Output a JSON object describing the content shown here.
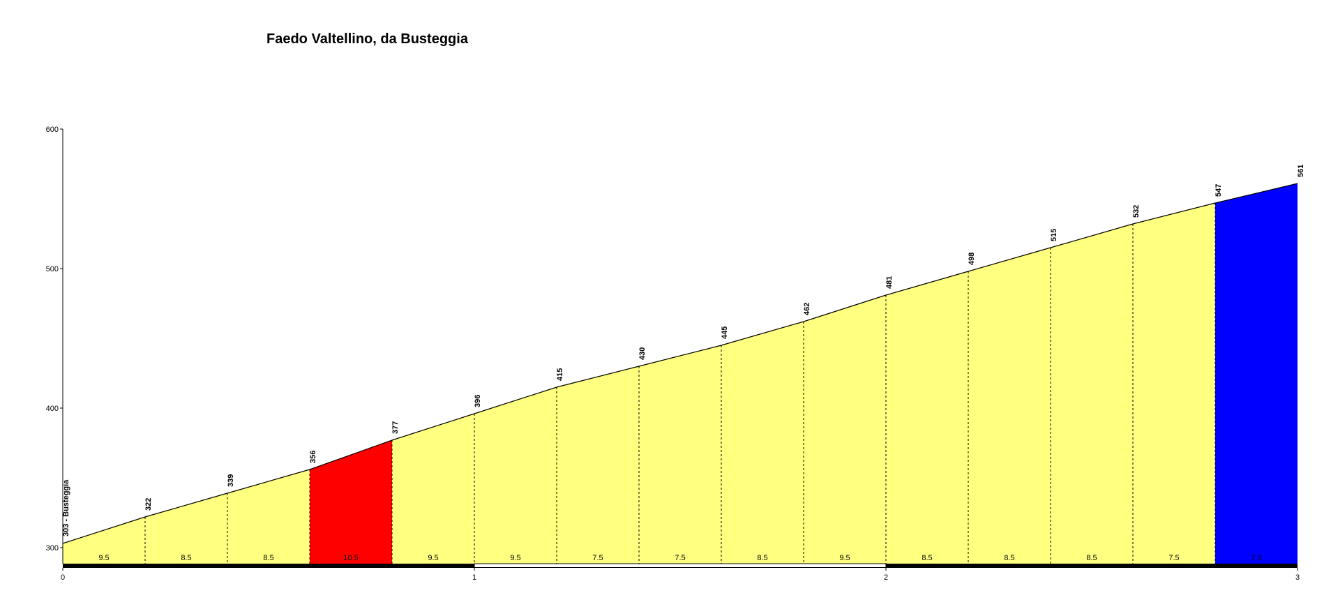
{
  "chart_data": {
    "type": "area",
    "title": "Faedo Valtellino, da Busteggia",
    "xlabel": "",
    "ylabel": "",
    "xlim": [
      0,
      3
    ],
    "ylim": [
      290,
      600
    ],
    "x_ticks": [
      "0",
      "1",
      "2",
      "3"
    ],
    "y_ticks": [
      "300",
      "400",
      "500",
      "600"
    ],
    "grid": false,
    "legend": "none",
    "start_label": "303 - Busteggia",
    "points": [
      {
        "x": 0.0,
        "elev": 303
      },
      {
        "x": 0.2,
        "elev": 322
      },
      {
        "x": 0.4,
        "elev": 339
      },
      {
        "x": 0.6,
        "elev": 356
      },
      {
        "x": 0.8,
        "elev": 377
      },
      {
        "x": 1.0,
        "elev": 396
      },
      {
        "x": 1.2,
        "elev": 415
      },
      {
        "x": 1.4,
        "elev": 430
      },
      {
        "x": 1.6,
        "elev": 445
      },
      {
        "x": 1.8,
        "elev": 462
      },
      {
        "x": 2.0,
        "elev": 481
      },
      {
        "x": 2.2,
        "elev": 498
      },
      {
        "x": 2.4,
        "elev": 515
      },
      {
        "x": 2.6,
        "elev": 532
      },
      {
        "x": 2.8,
        "elev": 547
      },
      {
        "x": 3.0,
        "elev": 561
      }
    ],
    "elevation_labels": [
      "322",
      "339",
      "356",
      "377",
      "396",
      "415",
      "430",
      "445",
      "462",
      "481",
      "498",
      "515",
      "532",
      "547",
      "561"
    ],
    "gradients": [
      "9.5",
      "8.5",
      "8.5",
      "10.5",
      "9.5",
      "9.5",
      "7.5",
      "7.5",
      "8.5",
      "9.5",
      "8.5",
      "8.5",
      "8.5",
      "7.5",
      "7.0"
    ],
    "segment_colors": [
      "#ffff80",
      "#ffff80",
      "#ffff80",
      "#ff0000",
      "#ffff80",
      "#ffff80",
      "#ffff80",
      "#ffff80",
      "#ffff80",
      "#ffff80",
      "#ffff80",
      "#ffff80",
      "#ffff80",
      "#ffff80",
      "#0000ff"
    ],
    "km_bar": [
      "black",
      "white",
      "black"
    ]
  }
}
